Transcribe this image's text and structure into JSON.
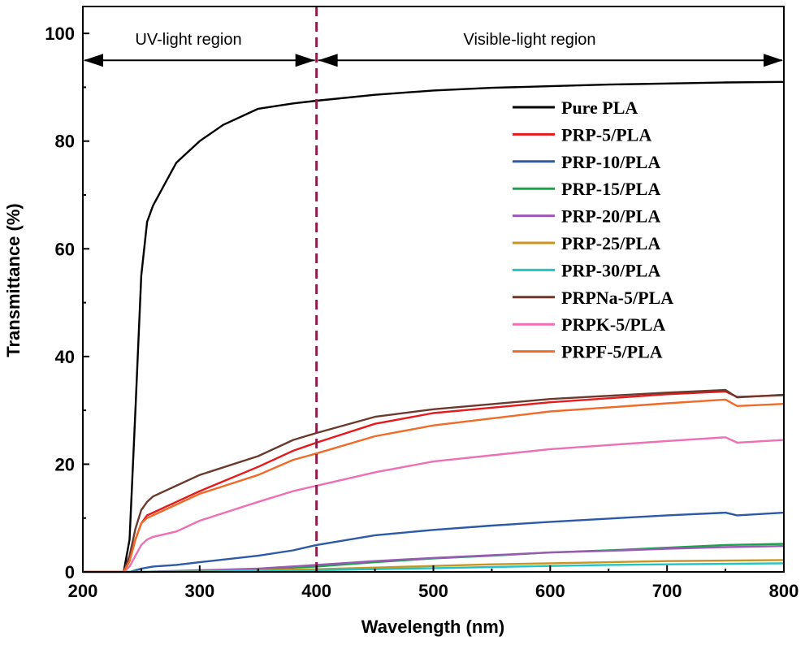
{
  "chart_data": {
    "type": "line",
    "title": "",
    "xlabel": "Wavelength (nm)",
    "ylabel": "Transmittance (%)",
    "xlim": [
      200,
      800
    ],
    "ylim": [
      0,
      105
    ],
    "xticks": [
      200,
      300,
      400,
      500,
      600,
      700,
      800
    ],
    "yticks": [
      0,
      20,
      40,
      60,
      80,
      100
    ],
    "grid": false,
    "legend_position": "top-right",
    "annotations": {
      "divider_x": 400,
      "uv_region_label": "UV-light region",
      "visible_region_label": "Visible-light region",
      "arrow_y": 95
    },
    "series": [
      {
        "name": "Pure PLA",
        "color": "#000000",
        "x": [
          200,
          235,
          240,
          245,
          250,
          255,
          260,
          270,
          280,
          300,
          320,
          350,
          380,
          400,
          450,
          500,
          550,
          600,
          650,
          700,
          750,
          800
        ],
        "y": [
          0,
          0,
          6,
          30,
          55,
          65,
          68,
          72,
          76,
          80,
          83,
          86,
          87,
          87.5,
          88.6,
          89.4,
          89.9,
          90.2,
          90.5,
          90.7,
          90.9,
          91
        ]
      },
      {
        "name": "PRP-5/PLA",
        "color": "#e41a1c",
        "x": [
          200,
          235,
          240,
          245,
          250,
          255,
          260,
          280,
          300,
          350,
          380,
          400,
          450,
          500,
          600,
          700,
          750,
          760,
          800
        ],
        "y": [
          0,
          0,
          2,
          6,
          9,
          10.5,
          11,
          13,
          15,
          19.5,
          22.5,
          24,
          27.5,
          29.5,
          31.5,
          33,
          33.5,
          32.5,
          32.8
        ]
      },
      {
        "name": "PRP-10/PLA",
        "color": "#2c5aa8",
        "x": [
          200,
          240,
          250,
          260,
          280,
          300,
          350,
          380,
          400,
          450,
          500,
          550,
          600,
          650,
          700,
          750,
          760,
          800
        ],
        "y": [
          0,
          0,
          0.6,
          1,
          1.3,
          1.8,
          3,
          4,
          5,
          6.8,
          7.8,
          8.6,
          9.3,
          9.9,
          10.5,
          11,
          10.5,
          11
        ]
      },
      {
        "name": "PRP-15/PLA",
        "color": "#1aa34a",
        "x": [
          200,
          250,
          300,
          350,
          400,
          450,
          500,
          550,
          600,
          650,
          700,
          750,
          800
        ],
        "y": [
          0,
          0,
          0.2,
          0.5,
          1,
          1.8,
          2.5,
          3,
          3.6,
          4,
          4.5,
          5,
          5.2
        ]
      },
      {
        "name": "PRP-20/PLA",
        "color": "#9b59b6",
        "x": [
          200,
          250,
          300,
          350,
          400,
          450,
          500,
          550,
          600,
          650,
          700,
          750,
          800
        ],
        "y": [
          0,
          0,
          0.3,
          0.6,
          1.3,
          2,
          2.6,
          3.1,
          3.6,
          3.9,
          4.3,
          4.6,
          4.8
        ]
      },
      {
        "name": "PRP-25/PLA",
        "color": "#c8961e",
        "x": [
          200,
          250,
          300,
          350,
          400,
          450,
          500,
          550,
          600,
          650,
          700,
          750,
          800
        ],
        "y": [
          0,
          0,
          0.1,
          0.3,
          0.5,
          0.8,
          1.1,
          1.4,
          1.6,
          1.8,
          2,
          2.1,
          2.2
        ]
      },
      {
        "name": "PRP-30/PLA",
        "color": "#20c4c4",
        "x": [
          200,
          250,
          300,
          350,
          400,
          450,
          500,
          550,
          600,
          650,
          700,
          750,
          800
        ],
        "y": [
          0,
          0,
          0.05,
          0.15,
          0.3,
          0.5,
          0.7,
          0.9,
          1.1,
          1.3,
          1.4,
          1.5,
          1.6
        ]
      },
      {
        "name": "PRPNa-5/PLA",
        "color": "#6b3a2e",
        "x": [
          200,
          235,
          240,
          245,
          250,
          255,
          260,
          280,
          300,
          350,
          380,
          400,
          450,
          500,
          600,
          700,
          750,
          760,
          800
        ],
        "y": [
          0,
          0,
          3,
          8,
          11.5,
          13,
          14,
          16,
          18,
          21.5,
          24.5,
          25.8,
          28.8,
          30.2,
          32.1,
          33.3,
          33.8,
          32.4,
          32.9
        ]
      },
      {
        "name": "PRPK-5/PLA",
        "color": "#ee6fb4",
        "x": [
          200,
          235,
          240,
          245,
          250,
          255,
          260,
          280,
          300,
          350,
          380,
          400,
          450,
          500,
          600,
          700,
          750,
          760,
          800
        ],
        "y": [
          0,
          0,
          1,
          3,
          5,
          6,
          6.5,
          7.5,
          9.5,
          13,
          15,
          16,
          18.5,
          20.5,
          22.8,
          24.3,
          25,
          24,
          24.5
        ]
      },
      {
        "name": "PRPF-5/PLA",
        "color": "#f06a28",
        "x": [
          200,
          235,
          240,
          245,
          250,
          255,
          260,
          280,
          300,
          350,
          380,
          400,
          450,
          500,
          600,
          700,
          750,
          760,
          800
        ],
        "y": [
          0,
          0,
          2,
          6,
          9,
          10,
          10.5,
          12.5,
          14.5,
          18,
          20.8,
          22,
          25.2,
          27.2,
          29.8,
          31.3,
          32,
          30.8,
          31.2
        ]
      }
    ]
  }
}
